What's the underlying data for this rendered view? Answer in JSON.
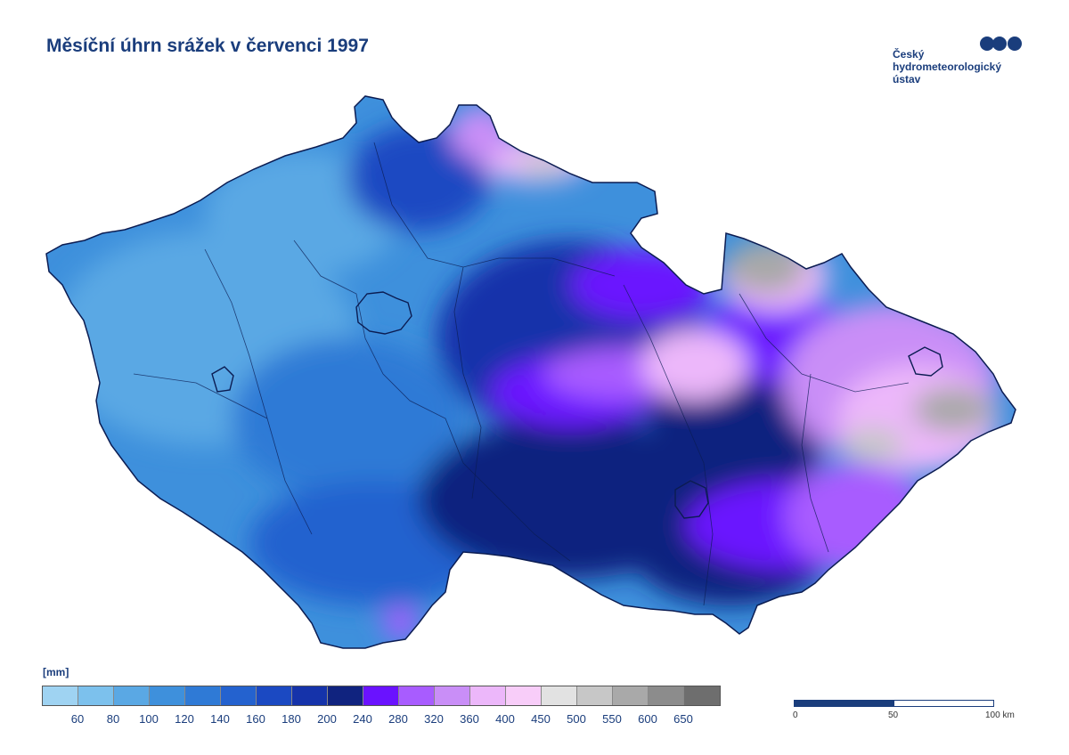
{
  "title": "Měsíční úhrn srážek v červenci 1997",
  "logo": {
    "lines": [
      "Český",
      "hydrometeorologický",
      "ústav"
    ],
    "icon": "chmi-logo-circles",
    "color": "#1a3d7c"
  },
  "legend": {
    "unit": "[mm]",
    "colors": [
      "#9fd3f2",
      "#7cc1ed",
      "#5aa8e4",
      "#3e90dc",
      "#2f7ad6",
      "#2462cf",
      "#1b49c2",
      "#1533aa",
      "#10237f",
      "#6a12ff",
      "#a85cff",
      "#c98ef7",
      "#ecb7fa",
      "#f8cdf9",
      "#e2e2e2",
      "#c7c7c7",
      "#a9a9a9",
      "#8c8c8c",
      "#6e6e6e"
    ],
    "labels": [
      "60",
      "80",
      "100",
      "120",
      "140",
      "160",
      "180",
      "200",
      "240",
      "280",
      "320",
      "360",
      "400",
      "450",
      "500",
      "550",
      "600",
      "650"
    ]
  },
  "scale": {
    "labels": [
      "0",
      "50",
      "100 km"
    ]
  }
}
